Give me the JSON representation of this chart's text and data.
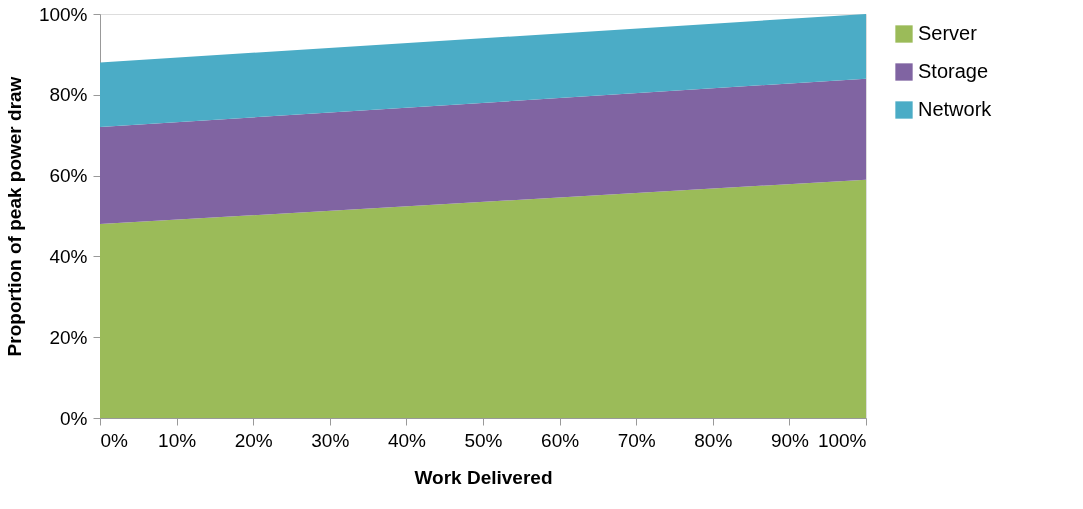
{
  "chart_data": {
    "type": "area",
    "stacked": true,
    "xlabel": "Work Delivered",
    "ylabel": "Proportion of peak power draw",
    "x": [
      0,
      100
    ],
    "series": [
      {
        "name": "Server",
        "color": "#9bbb59",
        "values": [
          48,
          59
        ]
      },
      {
        "name": "Storage",
        "color": "#8064a2",
        "values": [
          24,
          25
        ]
      },
      {
        "name": "Network",
        "color": "#4bacc6",
        "values": [
          16,
          16
        ]
      }
    ],
    "xlim": [
      0,
      100
    ],
    "ylim": [
      0,
      100
    ],
    "xticks": [
      {
        "value": 0,
        "label": "0%"
      },
      {
        "value": 10,
        "label": "10%"
      },
      {
        "value": 20,
        "label": "20%"
      },
      {
        "value": 30,
        "label": "30%"
      },
      {
        "value": 40,
        "label": "40%"
      },
      {
        "value": 50,
        "label": "50%"
      },
      {
        "value": 60,
        "label": "60%"
      },
      {
        "value": 70,
        "label": "70%"
      },
      {
        "value": 80,
        "label": "80%"
      },
      {
        "value": 90,
        "label": "90%"
      },
      {
        "value": 100,
        "label": "100%"
      }
    ],
    "yticks": [
      {
        "value": 0,
        "label": "0%"
      },
      {
        "value": 20,
        "label": "20%"
      },
      {
        "value": 40,
        "label": "40%"
      },
      {
        "value": 60,
        "label": "60%"
      },
      {
        "value": 80,
        "label": "80%"
      },
      {
        "value": 100,
        "label": "100%"
      }
    ],
    "grid": false,
    "legend": "right"
  }
}
